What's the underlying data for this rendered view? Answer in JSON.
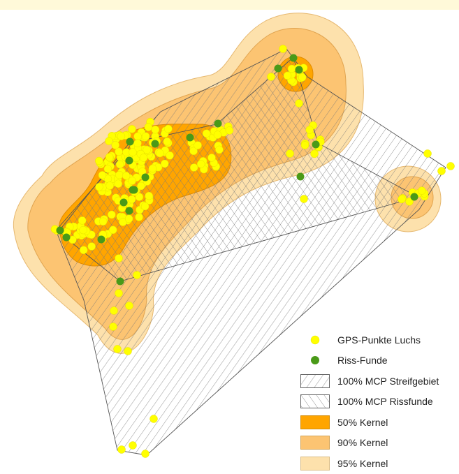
{
  "colors": {
    "kernel50": "#ffa500",
    "kernel90": "#fcc472",
    "kernel95": "#fde1ac",
    "gps": "#ffff00",
    "riss": "#4a9a18",
    "hatch": "#7a7a7a"
  },
  "legend": {
    "items": [
      {
        "key": "gps",
        "label": "GPS-Punkte Luchs",
        "symbol": "dot"
      },
      {
        "key": "riss",
        "label": "Riss-Funde",
        "symbol": "dot"
      },
      {
        "key": "mcp_streif",
        "label": "100% MCP Streifgebiet",
        "symbol": "hatch-forward"
      },
      {
        "key": "mcp_riss",
        "label": "100% MCP Rissfunde",
        "symbol": "hatch-back"
      },
      {
        "key": "k50",
        "label": "50% Kernel",
        "symbol": "fill"
      },
      {
        "key": "k90",
        "label": "90% Kernel",
        "symbol": "fill"
      },
      {
        "key": "k95",
        "label": "95% Kernel",
        "symbol": "fill"
      }
    ]
  }
}
